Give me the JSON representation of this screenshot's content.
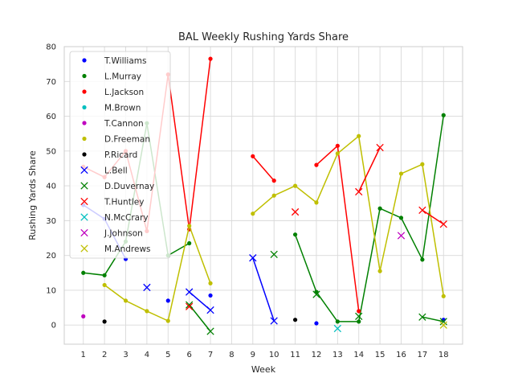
{
  "chart_data": {
    "type": "line",
    "title": "BAL Weekly Rushing Yards Share",
    "xlabel": "Week",
    "ylabel": "Rushing Yards Share",
    "xticks": [
      1,
      2,
      3,
      4,
      5,
      6,
      7,
      8,
      9,
      10,
      11,
      12,
      13,
      14,
      15,
      16,
      17,
      18
    ],
    "yticks": [
      0,
      10,
      20,
      30,
      40,
      50,
      60,
      70,
      80
    ],
    "xlim": [
      0.1,
      18.9
    ],
    "ylim": [
      -5.5,
      80
    ],
    "grid": true,
    "legend_position": "upper-left",
    "series": [
      {
        "name": "T.Williams",
        "color": "#0000ff",
        "marker": "dot",
        "points": [
          [
            1,
            34.5
          ],
          [
            2,
            30.5
          ],
          [
            3,
            19
          ],
          [
            5,
            7
          ],
          [
            7,
            8.5
          ],
          [
            12,
            0.5
          ],
          [
            18,
            1.5
          ]
        ],
        "segments": [
          [
            [
              1,
              34.5
            ],
            [
              2,
              30.5
            ],
            [
              3,
              19
            ]
          ]
        ]
      },
      {
        "name": "L.Murray",
        "color": "#008000",
        "marker": "dot",
        "points": [
          [
            1,
            15
          ],
          [
            2,
            14.3
          ],
          [
            3,
            24
          ],
          [
            4,
            58
          ],
          [
            5,
            20
          ],
          [
            6,
            23.5
          ],
          [
            11,
            26
          ],
          [
            12,
            9.5
          ],
          [
            13,
            1
          ],
          [
            14,
            1
          ],
          [
            15,
            33.5
          ],
          [
            16,
            30.8
          ],
          [
            17,
            18.8
          ],
          [
            18,
            60.3
          ]
        ],
        "segments": [
          [
            [
              1,
              15
            ],
            [
              2,
              14.3
            ],
            [
              3,
              24
            ],
            [
              4,
              58
            ],
            [
              5,
              20
            ],
            [
              6,
              23.5
            ]
          ],
          [
            [
              11,
              26
            ],
            [
              12,
              9.5
            ],
            [
              13,
              1
            ],
            [
              14,
              1
            ],
            [
              15,
              33.5
            ],
            [
              16,
              30.8
            ],
            [
              17,
              18.8
            ],
            [
              18,
              60.3
            ]
          ]
        ]
      },
      {
        "name": "L.Jackson",
        "color": "#ff0000",
        "marker": "dot",
        "points": [
          [
            1,
            45.5
          ],
          [
            2,
            42.5
          ],
          [
            3,
            50
          ],
          [
            4,
            27
          ],
          [
            5,
            72
          ],
          [
            6,
            27.5
          ],
          [
            7,
            76.5
          ],
          [
            9,
            48.5
          ],
          [
            10,
            41.5
          ],
          [
            12,
            46
          ],
          [
            13,
            51.5
          ],
          [
            14,
            4
          ]
        ],
        "segments": [
          [
            [
              1,
              45.5
            ],
            [
              2,
              42.5
            ],
            [
              3,
              50
            ],
            [
              4,
              27
            ],
            [
              5,
              72
            ],
            [
              6,
              27.5
            ],
            [
              7,
              76.5
            ]
          ],
          [
            [
              9,
              48.5
            ],
            [
              10,
              41.5
            ]
          ],
          [
            [
              12,
              46
            ],
            [
              13,
              51.5
            ],
            [
              14,
              4
            ]
          ]
        ]
      },
      {
        "name": "M.Brown",
        "color": "#00bfbf",
        "marker": "dot",
        "points": [],
        "segments": []
      },
      {
        "name": "T.Cannon",
        "color": "#bf00bf",
        "marker": "dot",
        "points": [
          [
            1,
            2.5
          ]
        ],
        "segments": []
      },
      {
        "name": "D.Freeman",
        "color": "#bfbf00",
        "marker": "dot",
        "points": [
          [
            2,
            11.5
          ],
          [
            3,
            7
          ],
          [
            4,
            4
          ],
          [
            5,
            1.2
          ],
          [
            6,
            28.5
          ],
          [
            7,
            12
          ],
          [
            9,
            32
          ],
          [
            10,
            37.2
          ],
          [
            11,
            40
          ],
          [
            12,
            35.2
          ],
          [
            13,
            49.3
          ],
          [
            14,
            54.3
          ],
          [
            15,
            15.5
          ],
          [
            16,
            43.5
          ],
          [
            17,
            46.2
          ],
          [
            18,
            8.3
          ]
        ],
        "segments": [
          [
            [
              2,
              11.5
            ],
            [
              3,
              7
            ],
            [
              4,
              4
            ],
            [
              5,
              1.2
            ],
            [
              6,
              28.5
            ],
            [
              7,
              12
            ]
          ],
          [
            [
              9,
              32
            ],
            [
              10,
              37.2
            ],
            [
              11,
              40
            ],
            [
              12,
              35.2
            ],
            [
              13,
              49.3
            ],
            [
              14,
              54.3
            ],
            [
              15,
              15.5
            ],
            [
              16,
              43.5
            ],
            [
              17,
              46.2
            ],
            [
              18,
              8.3
            ]
          ]
        ]
      },
      {
        "name": "P.Ricard",
        "color": "#000000",
        "marker": "dot",
        "points": [
          [
            2,
            1
          ],
          [
            11,
            1.5
          ]
        ],
        "segments": []
      },
      {
        "name": "L.Bell",
        "color": "#0000ff",
        "marker": "x",
        "points": [
          [
            4,
            10.8
          ],
          [
            6,
            9.5
          ],
          [
            7,
            4.3
          ],
          [
            9,
            19.3
          ],
          [
            10,
            1.2
          ]
        ],
        "segments": [
          [
            [
              6,
              9.5
            ],
            [
              7,
              4.3
            ]
          ],
          [
            [
              9,
              19.3
            ],
            [
              10,
              1.2
            ]
          ]
        ]
      },
      {
        "name": "D.Duvernay",
        "color": "#008000",
        "marker": "x",
        "points": [
          [
            6,
            5.8
          ],
          [
            7,
            -1.8
          ],
          [
            10,
            20.3
          ],
          [
            12,
            8.8
          ],
          [
            14,
            2.5
          ],
          [
            17,
            2.3
          ],
          [
            18,
            1
          ]
        ],
        "segments": [
          [
            [
              6,
              5.8
            ],
            [
              7,
              -1.8
            ]
          ],
          [
            [
              17,
              2.3
            ],
            [
              18,
              1
            ]
          ]
        ]
      },
      {
        "name": "T.Huntley",
        "color": "#ff0000",
        "marker": "x",
        "points": [
          [
            6,
            5.3
          ],
          [
            11,
            32.5
          ],
          [
            14,
            38.3
          ],
          [
            15,
            51
          ],
          [
            17,
            33
          ],
          [
            18,
            29
          ]
        ],
        "segments": [
          [
            [
              14,
              38.3
            ],
            [
              15,
              51
            ]
          ],
          [
            [
              17,
              33
            ],
            [
              18,
              29
            ]
          ]
        ]
      },
      {
        "name": "N.McCrary",
        "color": "#00bfbf",
        "marker": "x",
        "points": [
          [
            13,
            -1
          ]
        ],
        "segments": []
      },
      {
        "name": "J.Johnson",
        "color": "#bf00bf",
        "marker": "x",
        "points": [
          [
            16,
            25.7
          ]
        ],
        "segments": []
      },
      {
        "name": "M.Andrews",
        "color": "#bfbf00",
        "marker": "x",
        "points": [
          [
            18,
            0
          ]
        ],
        "segments": []
      }
    ]
  }
}
